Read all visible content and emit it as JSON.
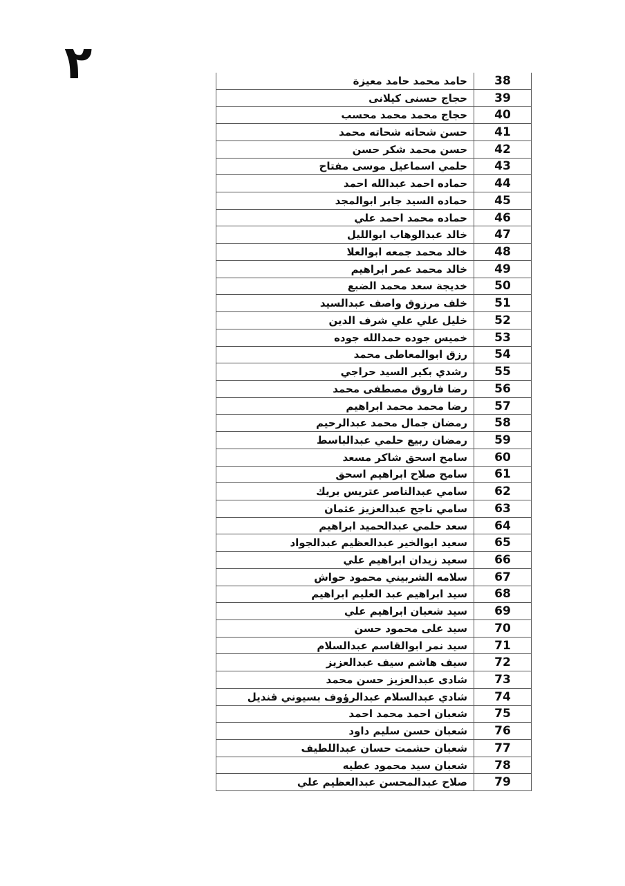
{
  "page": {
    "number_label": "٢"
  },
  "table": {
    "rows": [
      {
        "serial": "38",
        "name": "حامد محمد حامد معيزة"
      },
      {
        "serial": "39",
        "name": "حجاج حسنى كيلانى"
      },
      {
        "serial": "40",
        "name": "حجاج محمد محمد محسب"
      },
      {
        "serial": "41",
        "name": "حسن شحاته شحاته محمد"
      },
      {
        "serial": "42",
        "name": "حسن محمد شكر حسن"
      },
      {
        "serial": "43",
        "name": "حلمي اسماعيل موسى مفتاح"
      },
      {
        "serial": "44",
        "name": "حماده احمد عبدالله احمد"
      },
      {
        "serial": "45",
        "name": "حماده السيد جابر ابوالمجد"
      },
      {
        "serial": "46",
        "name": "حماده محمد احمد علي"
      },
      {
        "serial": "47",
        "name": "خالد عبدالوهاب ابوالليل"
      },
      {
        "serial": "48",
        "name": "خالد محمد جمعه ابوالعلا"
      },
      {
        "serial": "49",
        "name": "خالد محمد عمر ابراهيم"
      },
      {
        "serial": "50",
        "name": "خديجة سعد محمد الضبع"
      },
      {
        "serial": "51",
        "name": "خلف مرزوق واصف عبدالسيد"
      },
      {
        "serial": "52",
        "name": "خليل علي علي شرف الدين"
      },
      {
        "serial": "53",
        "name": "خميس جوده حمدالله جوده"
      },
      {
        "serial": "54",
        "name": "رزق ابوالمعاطى محمد"
      },
      {
        "serial": "55",
        "name": "رشدي بكير السيد حراجي"
      },
      {
        "serial": "56",
        "name": "رضا فاروق مصطفى محمد"
      },
      {
        "serial": "57",
        "name": "رضا محمد محمد ابراهيم"
      },
      {
        "serial": "58",
        "name": "رمضان جمال محمد عبدالرحيم"
      },
      {
        "serial": "59",
        "name": "رمضان ربيع حلمي عبدالباسط"
      },
      {
        "serial": "60",
        "name": "سامح اسحق شاكر مسعد"
      },
      {
        "serial": "61",
        "name": "سامح صلاح ابراهيم اسحق"
      },
      {
        "serial": "62",
        "name": "سامي عبدالناصر عتريس بريك"
      },
      {
        "serial": "63",
        "name": "سامي ناجح عبدالعزيز عثمان"
      },
      {
        "serial": "64",
        "name": "سعد حلمي عبدالحميد ابراهيم"
      },
      {
        "serial": "65",
        "name": "سعيد ابوالخير عبدالعظيم عبدالجواد"
      },
      {
        "serial": "66",
        "name": "سعيد زيدان ابراهيم علي"
      },
      {
        "serial": "67",
        "name": "سلامه الشربيني محمود حواش"
      },
      {
        "serial": "68",
        "name": "سيد ابراهيم عبد العليم ابراهيم"
      },
      {
        "serial": "69",
        "name": "سيد شعبان ابراهيم علي"
      },
      {
        "serial": "70",
        "name": "سيد على محمود حسن"
      },
      {
        "serial": "71",
        "name": "سيد نمر ابوالقاسم عبدالسلام"
      },
      {
        "serial": "72",
        "name": "سيف هاشم سيف عبدالعزيز"
      },
      {
        "serial": "73",
        "name": "شادى عبدالعزيز حسن محمد"
      },
      {
        "serial": "74",
        "name": "شادي عبدالسلام عبدالرؤوف بسيوني قنديل"
      },
      {
        "serial": "75",
        "name": "شعبان احمد محمد احمد"
      },
      {
        "serial": "76",
        "name": "شعبان حسن سليم داود"
      },
      {
        "serial": "77",
        "name": "شعبان حشمت حسان عبداللطيف"
      },
      {
        "serial": "78",
        "name": "شعبان سيد محمود عطيه"
      },
      {
        "serial": "79",
        "name": "صلاح عبدالمحسن عبدالعظيم علي"
      }
    ]
  }
}
